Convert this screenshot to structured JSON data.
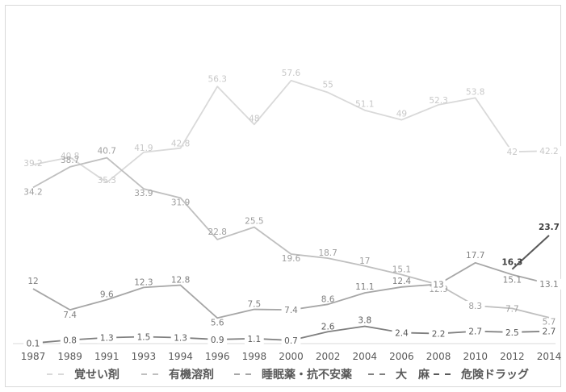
{
  "chart_data": {
    "type": "line",
    "title": "",
    "xlabel": "",
    "ylabel": "",
    "ylim": [
      0,
      62
    ],
    "grid": false,
    "legend_position": "bottom",
    "x": [
      "1987",
      "1989",
      "1991",
      "1993",
      "1994",
      "1996",
      "1998",
      "2000",
      "2002",
      "2004",
      "2006",
      "2008",
      "2010",
      "2012",
      "2014"
    ],
    "series": [
      {
        "name": "覚せい剤",
        "color": "#d9d9d9",
        "values": [
          39.2,
          40.8,
          35.3,
          41.9,
          42.8,
          56.3,
          48,
          57.6,
          55,
          51.1,
          49,
          52.3,
          53.8,
          42,
          42.2
        ],
        "labels": [
          "39.2",
          "40.8",
          "35.3",
          "41.9",
          "42.8",
          "56.3",
          "48",
          "57.6",
          "55",
          "51.1",
          "49",
          "52.3",
          "53.8",
          "42",
          "42.2"
        ]
      },
      {
        "name": "有機溶剤",
        "color": "#bfbfbf",
        "values": [
          34.2,
          38.7,
          40.7,
          33.9,
          31.9,
          22.8,
          25.5,
          19.6,
          18.7,
          17,
          15.1,
          12.9,
          8.3,
          7.7,
          5.7
        ],
        "labels": [
          "34.2",
          "38.7",
          "40.7",
          "33.9",
          "31.9",
          "22.8",
          "25.5",
          "19.6",
          "18.7",
          "17",
          "15.1",
          "12.9",
          "8.3",
          "7.7",
          "5.7"
        ]
      },
      {
        "name": "睡眠薬・抗不安薬",
        "color": "#a6a6a6",
        "values": [
          12,
          7.4,
          9.6,
          12.3,
          12.8,
          5.6,
          7.5,
          7.4,
          8.6,
          11.1,
          12.4,
          13,
          17.7,
          15.1,
          13.1
        ],
        "labels": [
          "12",
          "7.4",
          "9.6",
          "12.3",
          "12.8",
          "5.6",
          "7.5",
          "7.4",
          "8.6",
          "11.1",
          "12.4",
          "13",
          "17.7",
          "15.1",
          "13.1"
        ]
      },
      {
        "name": "大　麻",
        "color": "#7f7f7f",
        "values": [
          0.1,
          0.8,
          1.3,
          1.5,
          1.3,
          0.9,
          1.1,
          0.7,
          2.6,
          3.8,
          2.4,
          2.2,
          2.7,
          2.5,
          2.7
        ],
        "labels": [
          "0.1",
          "0.8",
          "1.3",
          "1.5",
          "1.3",
          "0.9",
          "1.1",
          "0.7",
          "2.6",
          "3.8",
          "2.4",
          "2.2",
          "2.7",
          "2.5",
          "2.7"
        ]
      },
      {
        "name": "危険ドラッグ",
        "color": "#595959",
        "x": [
          "2012",
          "2014"
        ],
        "values": [
          16.3,
          23.7
        ],
        "labels": [
          "16.3",
          "23.7"
        ]
      }
    ]
  }
}
